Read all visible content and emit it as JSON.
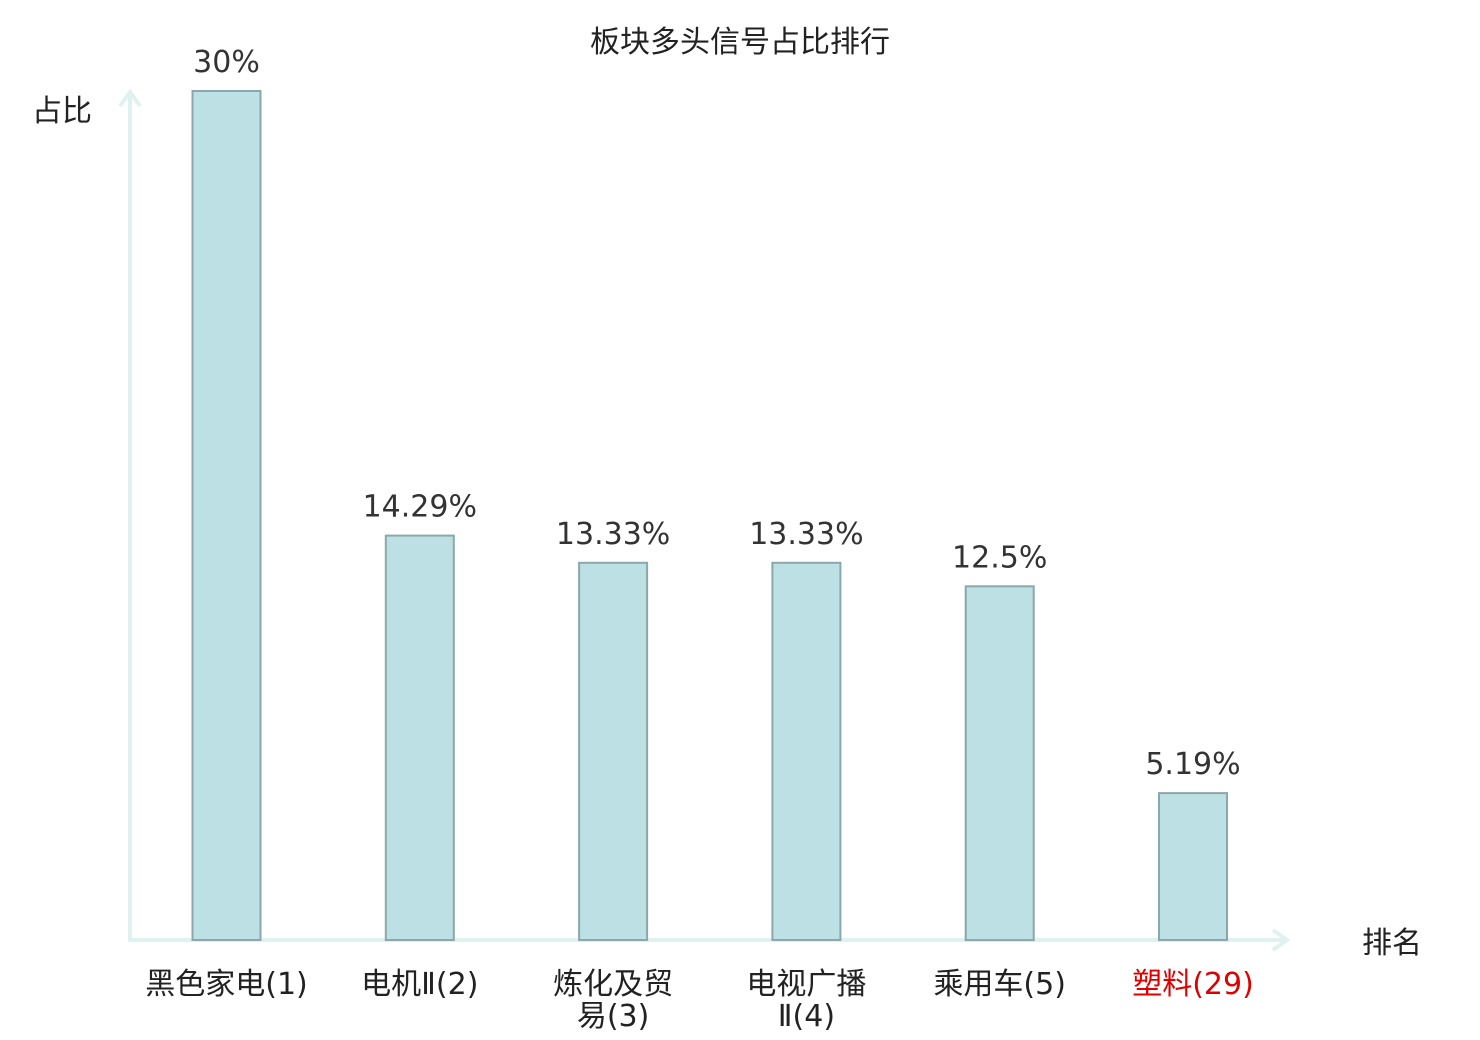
{
  "chart_data": {
    "type": "bar",
    "title": "板块多头信号占比排行",
    "ylabel": "占比",
    "xlabel": "排名",
    "ylim": [
      0,
      30
    ],
    "grid": false,
    "legend": "none",
    "categories": [
      [
        "黑色家电(1)"
      ],
      [
        "电机Ⅱ(2)"
      ],
      [
        "炼化及贸",
        "易(3)"
      ],
      [
        "电视广播",
        "Ⅱ(4)"
      ],
      [
        "乘用车(5)"
      ],
      [
        "塑料(29)"
      ]
    ],
    "values": [
      30,
      14.29,
      13.33,
      13.33,
      12.5,
      5.19
    ],
    "value_labels": [
      "30%",
      "14.29%",
      "13.33%",
      "13.33%",
      "12.5%",
      "5.19%"
    ],
    "highlight_index": 5,
    "colors": {
      "bar_fill": "#bce0e3",
      "bar_stroke": "#8aa8ab",
      "axis": "#e0f2f0",
      "text": "#222222",
      "value_text": "#333333",
      "highlight_text": "#e00000"
    }
  }
}
